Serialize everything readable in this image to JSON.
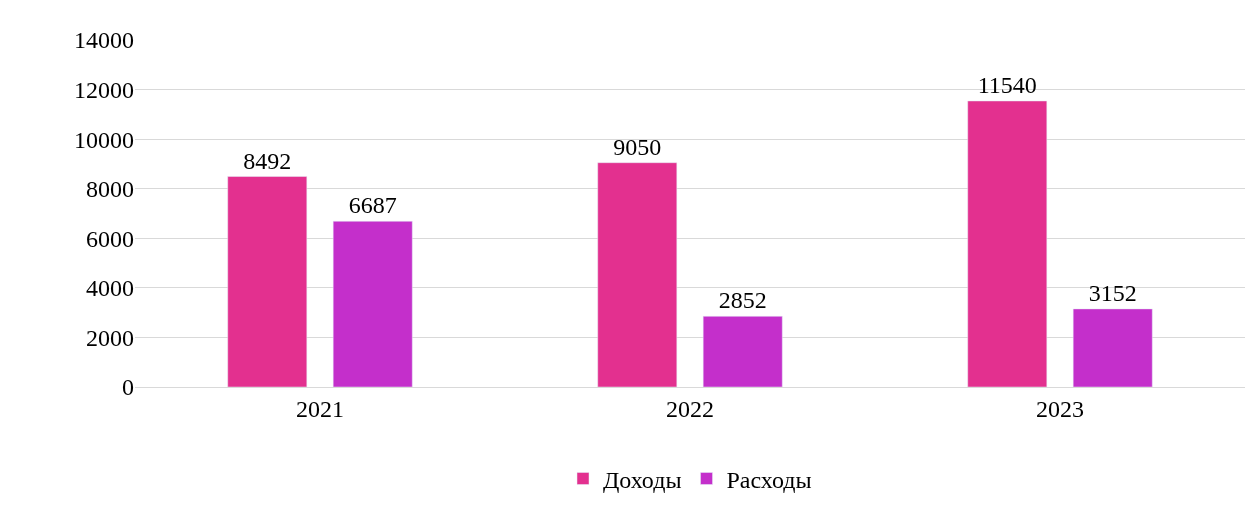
{
  "chart_data": {
    "type": "bar",
    "categories": [
      "2021",
      "2022",
      "2023"
    ],
    "series": [
      {
        "name": "Доходы",
        "color": "#e3308f",
        "values": [
          8492,
          9050,
          11540
        ]
      },
      {
        "name": "Расходы",
        "color": "#c42fcb",
        "values": [
          6687,
          2852,
          3152
        ]
      }
    ],
    "ylim": [
      0,
      14000
    ],
    "yticks": [
      0,
      2000,
      4000,
      6000,
      8000,
      10000,
      12000,
      14000
    ],
    "grid": "y",
    "legend": "bottom",
    "data_labels": true
  }
}
